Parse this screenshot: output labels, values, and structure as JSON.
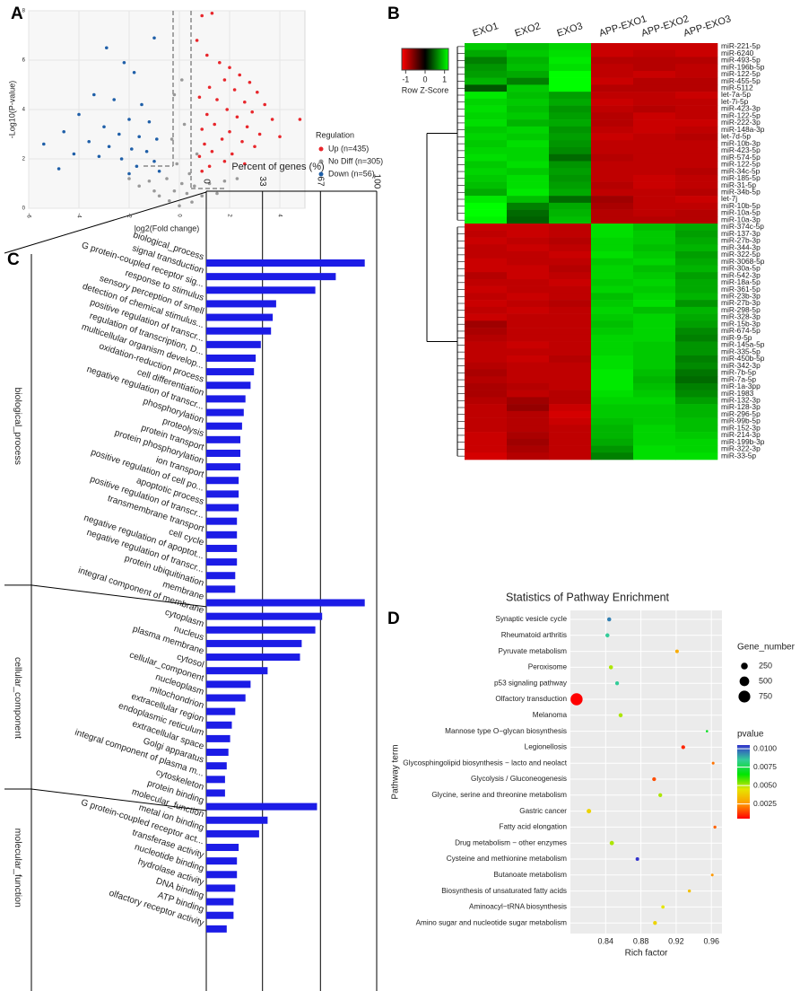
{
  "chart_data": [
    {
      "panel": "A",
      "type": "scatter",
      "x_label": "log2(Fold change)",
      "y_label": "-Log10(P-value)",
      "xlim": [
        -6,
        5
      ],
      "ylim": [
        0,
        8
      ],
      "xticks": [
        -6,
        -4,
        -2,
        0,
        2,
        4
      ],
      "yticks": [
        0,
        2,
        4,
        6,
        8
      ],
      "legend_title": "Regulation",
      "series": [
        {
          "name": "Up (n=435)",
          "color": "#e8262b",
          "x": [
            0.9,
            1.3,
            0.7,
            1.1,
            1.6,
            2.0,
            2.4,
            1.8,
            2.8,
            1.2,
            2.2,
            3.1,
            0.8,
            1.5,
            2.6,
            3.4,
            1.9,
            2.9,
            1.1,
            2.3,
            3.7,
            1.4,
            2.7,
            0.9,
            2.0,
            3.2,
            4.0,
            1.7,
            2.5,
            1.0,
            3.0,
            1.3,
            2.1,
            0.8,
            1.8,
            2.6,
            1.2,
            0.9,
            4.8
          ],
          "values": [
            7.8,
            7.9,
            6.8,
            6.2,
            5.9,
            5.7,
            5.4,
            5.2,
            5.1,
            4.9,
            4.8,
            4.7,
            4.5,
            4.4,
            4.3,
            4.2,
            4.0,
            3.9,
            3.8,
            3.7,
            3.6,
            3.4,
            3.3,
            3.2,
            3.1,
            3.0,
            2.9,
            2.8,
            2.7,
            2.6,
            2.5,
            2.3,
            2.2,
            2.1,
            1.9,
            1.8,
            1.7,
            1.5,
            3.6
          ]
        },
        {
          "name": "No Diff (n=305)",
          "color": "#999999",
          "x": [
            -0.3,
            0.2,
            -0.1,
            0.4,
            -0.5,
            0.1,
            -1.2,
            -2.0,
            -1.6,
            0.6,
            1.2,
            1.8,
            -0.2,
            0.3,
            -0.8,
            0.9,
            -0.4,
            0.5,
            0.0,
            1.5,
            -1.0,
            2.3,
            0.7,
            -0.2,
            0.1
          ],
          "values": [
            2.8,
            3.4,
            1.8,
            1.4,
            1.2,
            1.0,
            1.1,
            1.2,
            0.9,
            0.9,
            1.0,
            1.1,
            0.7,
            0.6,
            0.5,
            0.5,
            0.3,
            0.25,
            0.1,
            0.6,
            0.7,
            1.2,
            2.2,
            4.6,
            5.2
          ]
        },
        {
          "name": "Down (n=56)",
          "color": "#1f5fa8",
          "x": [
            -2.9,
            -2.2,
            -1.8,
            -1.0,
            -3.4,
            -2.6,
            -1.5,
            -4.0,
            -2.0,
            -1.2,
            -3.0,
            -4.6,
            -2.4,
            -1.6,
            -0.9,
            -3.6,
            -2.8,
            -1.9,
            -1.3,
            -4.2,
            -3.2,
            -2.3,
            -1.0,
            -1.7,
            -4.8,
            -0.8,
            -5.4,
            -2.0
          ],
          "values": [
            6.5,
            5.9,
            5.5,
            6.9,
            4.6,
            4.4,
            4.2,
            3.8,
            3.6,
            3.5,
            3.3,
            3.1,
            3.0,
            2.9,
            2.8,
            2.7,
            2.5,
            2.4,
            2.3,
            2.2,
            2.1,
            2.0,
            1.9,
            1.7,
            1.6,
            1.5,
            2.6,
            1.4
          ]
        }
      ]
    },
    {
      "panel": "B",
      "type": "heatmap",
      "columns": [
        "EXO1",
        "EXO2",
        "EXO3",
        "APP-EXO1",
        "APP-EXO2",
        "APP-EXO3"
      ],
      "rows": [
        "miR-221-5p",
        "miR-6240",
        "miR-493-5p",
        "miR-196b-5p",
        "miR-122-5p",
        "miR-455-5p",
        "miR-5112",
        "let-7a-5p",
        "let-7i-5p",
        "miR-423-3p",
        "miR-122-5p",
        "miR-222-3p",
        "miR-148a-3p",
        "let-7d-5p",
        "miR-10b-3p",
        "miR-423-5p",
        "miR-574-5p",
        "miR-122-5p",
        "miR-34c-5p",
        "miR-185-5p",
        "miR-31-5p",
        "miR-34b-5p",
        "let-7j",
        "miR-10b-5p",
        "miR-10a-5p",
        "miR-10a-3p",
        "miR-374c-5p",
        "miR-137-3p",
        "miR-27b-3p",
        "miR-344-3p",
        "miR-322-5p",
        "miR-3068-5p",
        "miR-30a-5p",
        "miR-542-3p",
        "miR-18a-5p",
        "miR-361-5p",
        "miR-23b-3p",
        "miR-27b-3p",
        "miR-298-5p",
        "miR-328-3p",
        "miR-15b-3p",
        "miR-674-5p",
        "miR-9-5p",
        "miR-145a-5p",
        "miR-335-5p",
        "miR-450b-5p",
        "miR-342-3p",
        "miR-7b-5p",
        "miR-7a-5p",
        "miR-1a-3pp",
        "miR-1983",
        "miR-132-3p",
        "miR-128-3p",
        "miR-296-5p",
        "miR-99b-5p",
        "miR-152-3p",
        "miR-214-3p",
        "miR-199b-3p",
        "miR-322-3p",
        "miR-33-5p"
      ],
      "values": [
        [
          0.95,
          0.9,
          1.0,
          -0.95,
          -0.95,
          -0.95
        ],
        [
          0.8,
          0.95,
          1.05,
          -0.95,
          -0.9,
          -0.95
        ],
        [
          0.6,
          0.85,
          1.1,
          -0.85,
          -0.85,
          -0.85
        ],
        [
          0.7,
          0.9,
          1.05,
          -0.9,
          -0.85,
          -0.9
        ],
        [
          0.75,
          0.8,
          1.2,
          -0.9,
          -0.95,
          -0.9
        ],
        [
          0.85,
          0.6,
          1.2,
          -0.95,
          -0.85,
          -0.85
        ],
        [
          0.4,
          0.95,
          1.2,
          -0.85,
          -0.85,
          -0.85
        ],
        [
          1.1,
          0.9,
          0.75,
          -0.9,
          -0.9,
          -0.95
        ],
        [
          1.0,
          0.95,
          0.8,
          -0.95,
          -0.9,
          -0.9
        ],
        [
          1.05,
          0.9,
          0.7,
          -0.9,
          -0.85,
          -0.9
        ],
        [
          1.0,
          0.95,
          0.75,
          -0.85,
          -0.95,
          -0.9
        ],
        [
          1.05,
          0.85,
          0.8,
          -0.85,
          -0.95,
          -0.95
        ],
        [
          0.95,
          1.0,
          0.7,
          -0.9,
          -0.95,
          -0.9
        ],
        [
          1.0,
          0.95,
          0.75,
          -0.95,
          -0.9,
          -0.85
        ],
        [
          0.95,
          1.05,
          0.7,
          -0.9,
          -0.9,
          -0.9
        ],
        [
          1.0,
          1.0,
          0.65,
          -0.9,
          -0.9,
          -0.9
        ],
        [
          1.05,
          1.0,
          0.5,
          -0.85,
          -0.9,
          -0.9
        ],
        [
          0.95,
          1.05,
          0.7,
          -0.9,
          -0.9,
          -0.9
        ],
        [
          1.0,
          0.95,
          0.75,
          -0.9,
          -0.9,
          -0.85
        ],
        [
          0.95,
          1.05,
          0.7,
          -0.9,
          -0.95,
          -0.9
        ],
        [
          0.9,
          1.05,
          0.75,
          -0.85,
          -0.95,
          -0.9
        ],
        [
          0.8,
          1.1,
          0.8,
          -0.9,
          -0.9,
          -0.85
        ],
        [
          1.1,
          0.9,
          0.5,
          -0.75,
          -0.9,
          -0.95
        ],
        [
          1.2,
          0.6,
          0.8,
          -0.8,
          -0.9,
          -0.9
        ],
        [
          1.2,
          0.5,
          0.85,
          -0.85,
          -0.9,
          -0.85
        ],
        [
          1.15,
          0.45,
          0.9,
          -0.85,
          -0.85,
          -0.85
        ],
        [
          -0.95,
          -0.95,
          -0.9,
          1.05,
          0.9,
          0.8
        ],
        [
          -0.9,
          -0.95,
          -0.9,
          1.05,
          0.95,
          0.75
        ],
        [
          -0.95,
          -0.9,
          -0.85,
          1.0,
          0.95,
          0.8
        ],
        [
          -0.9,
          -0.95,
          -0.9,
          1.0,
          0.9,
          0.85
        ],
        [
          -0.9,
          -0.9,
          -0.95,
          1.05,
          0.95,
          0.75
        ],
        [
          -0.95,
          -0.9,
          -0.9,
          0.95,
          1.0,
          0.8
        ],
        [
          -0.95,
          -0.95,
          -0.85,
          1.0,
          0.9,
          0.85
        ],
        [
          -0.85,
          -0.95,
          -0.9,
          1.0,
          0.95,
          0.75
        ],
        [
          -0.9,
          -0.9,
          -0.95,
          0.95,
          1.0,
          0.8
        ],
        [
          -0.95,
          -0.9,
          -0.9,
          1.0,
          0.95,
          0.8
        ],
        [
          -0.9,
          -0.95,
          -0.9,
          0.9,
          1.0,
          0.85
        ],
        [
          -0.95,
          -0.9,
          -0.85,
          0.95,
          1.05,
          0.7
        ],
        [
          -0.9,
          -0.95,
          -0.9,
          1.0,
          0.9,
          0.85
        ],
        [
          -0.95,
          -0.9,
          -0.9,
          0.95,
          1.0,
          0.8
        ],
        [
          -0.75,
          -0.9,
          -0.9,
          0.9,
          1.0,
          0.75
        ],
        [
          -0.8,
          -0.9,
          -0.9,
          0.95,
          1.0,
          0.65
        ],
        [
          -0.85,
          -0.9,
          -0.9,
          1.0,
          1.0,
          0.6
        ],
        [
          -0.9,
          -0.95,
          -0.9,
          1.0,
          0.95,
          0.7
        ],
        [
          -0.9,
          -0.9,
          -0.9,
          1.0,
          0.95,
          0.7
        ],
        [
          -0.9,
          -0.95,
          -0.85,
          1.05,
          0.95,
          0.6
        ],
        [
          -0.85,
          -0.9,
          -0.9,
          1.05,
          0.95,
          0.65
        ],
        [
          -0.8,
          -0.9,
          -0.9,
          1.1,
          0.9,
          0.55
        ],
        [
          -0.85,
          -0.9,
          -0.9,
          1.1,
          0.85,
          0.5
        ],
        [
          -0.8,
          -0.85,
          -0.9,
          1.1,
          0.9,
          0.6
        ],
        [
          -0.8,
          -0.9,
          -0.85,
          1.05,
          0.95,
          0.65
        ],
        [
          -0.85,
          -0.75,
          -0.85,
          1.0,
          1.0,
          0.75
        ],
        [
          -0.9,
          -0.7,
          -0.95,
          0.95,
          0.95,
          0.85
        ],
        [
          -0.9,
          -0.85,
          -1.0,
          0.95,
          0.95,
          0.85
        ],
        [
          -0.9,
          -0.85,
          -0.95,
          0.9,
          0.95,
          0.9
        ],
        [
          -0.9,
          -0.85,
          -0.9,
          0.85,
          1.0,
          0.9
        ],
        [
          -0.95,
          -0.8,
          -0.9,
          0.85,
          1.0,
          0.95
        ],
        [
          -0.95,
          -0.75,
          -0.9,
          0.8,
          1.0,
          1.0
        ],
        [
          -0.95,
          -0.8,
          -0.9,
          0.7,
          1.05,
          1.0
        ],
        [
          -1.0,
          -0.85,
          -0.9,
          0.6,
          1.05,
          1.05
        ]
      ],
      "zlim": [
        -1.2,
        1.2
      ],
      "colorbar_ticks": [
        -1,
        0,
        1
      ],
      "colorbar_label": "Row Z-Score",
      "colors": [
        "#ff0000",
        "#000000",
        "#00ff00"
      ]
    },
    {
      "panel": "C",
      "type": "barh",
      "title": "Percent of genes (%)",
      "xlim": [
        0,
        100
      ],
      "xticks": [
        0,
        33,
        67,
        100
      ],
      "color": "#1c1ce6",
      "groups": [
        {
          "name": "biological_process",
          "categories": [
            "biological_process",
            "signal transduction",
            "G protein-coupled receptor sig...",
            "response to stimulus",
            "sensory perception of smell",
            "detection of chemical stimulus...",
            "positive regulation of transcr...",
            "regulation of transcription, D...",
            "multicellular organism develop...",
            "oxidation-reduction process",
            "cell differentiation",
            "negative regulation of transcr...",
            "phosphorylation",
            "proteolysis",
            "protein transport",
            "protein phosphorylation",
            "ion transport",
            "positive regulation of cell po...",
            "apoptotic process",
            "positive regulation of transcr...",
            "transmembrane transport",
            "cell cycle",
            "negative regulation of apoptot...",
            "negative regulation of transcr...",
            "protein ubiquitination"
          ],
          "values": [
            93,
            76,
            64,
            41,
            39,
            38,
            32,
            29,
            28,
            26,
            23,
            22,
            21,
            20,
            20,
            20,
            19,
            19,
            19,
            18,
            18,
            18,
            18,
            17,
            17
          ]
        },
        {
          "name": "cellular_component",
          "categories": [
            "membrane",
            "integral component of membrane",
            "cytoplasm",
            "nucleus",
            "plasma membrane",
            "cytosol",
            "cellular_component",
            "nucleoplasm",
            "mitochondrion",
            "extracellular region",
            "endoplasmic reticulum",
            "extracellular space",
            "Golgi apparatus",
            "integral component of plasma m...",
            "cytoskeleton"
          ],
          "values": [
            93,
            68,
            64,
            56,
            55,
            36,
            26,
            23,
            17,
            15,
            14,
            13,
            12,
            11,
            11
          ]
        },
        {
          "name": "molecular_function",
          "categories": [
            "protein binding",
            "molecular_function",
            "metal ion binding",
            "G protein-coupled receptor act...",
            "transferase activity",
            "nucleotide binding",
            "hydrolase activity",
            "DNA binding",
            "ATP binding",
            "olfactory receptor activity"
          ],
          "values": [
            65,
            36,
            31,
            19,
            18,
            18,
            17,
            16,
            16,
            12
          ]
        }
      ]
    },
    {
      "panel": "D",
      "type": "bubble",
      "title": "Statistics of Pathway Enrichment",
      "x_label": "Rich factor",
      "y_label": "Pathway term",
      "xlim": [
        0.8,
        0.972
      ],
      "xticks": [
        0.84,
        0.88,
        0.92,
        0.96
      ],
      "categories": [
        "Synaptic vesicle cycle",
        "Rheumatoid arthritis",
        "Pyruvate metabolism",
        "Peroxisome",
        "p53 signaling pathway",
        "Olfactory transduction",
        "Melanoma",
        "Mannose type O−glycan biosynthesis",
        "Legionellosis",
        "Glycosphingolipid biosynthesis − lacto and neolact",
        "Glycolysis / Gluconeogenesis",
        "Glycine, serine and threonine metabolism",
        "Gastric cancer",
        "Fatty acid elongation",
        "Drug metabolism − other enzymes",
        "Cysteine and methionine metabolism",
        "Butanoate metabolism",
        "Biosynthesis of unsaturated fatty acids",
        "Aminoacyl−tRNA biosynthesis",
        "Amino sugar and nucleotide sugar metabolism"
      ],
      "values": [
        0.844,
        0.842,
        0.921,
        0.846,
        0.853,
        0.807,
        0.857,
        0.955,
        0.928,
        0.962,
        0.895,
        0.902,
        0.821,
        0.964,
        0.847,
        0.876,
        0.961,
        0.935,
        0.905,
        0.896
      ],
      "size": [
        90,
        90,
        70,
        90,
        80,
        790,
        90,
        30,
        80,
        40,
        80,
        80,
        110,
        50,
        100,
        70,
        40,
        50,
        60,
        80
      ],
      "pvalue": [
        0.0095,
        0.0085,
        0.003,
        0.005,
        0.0085,
        0.0005,
        0.005,
        0.007,
        0.001,
        0.002,
        0.0015,
        0.005,
        0.004,
        0.0018,
        0.005,
        0.0105,
        0.0025,
        0.0035,
        0.0045,
        0.004
      ],
      "size_legend_title": "Gene_number",
      "size_ticks": [
        250,
        500,
        750
      ],
      "color_legend_title": "pvalue",
      "clim": [
        0.0005,
        0.0105
      ],
      "cticks": [
        {
          "value": 0.01,
          "label": "0.0100"
        },
        0.0075,
        {
          "value": 0.005,
          "label": "0.0050"
        },
        0.0025
      ],
      "colors": [
        "#ff0000",
        "#ff9900",
        "#e6e600",
        "#00e600",
        "#33cc99",
        "#3333cc"
      ]
    }
  ]
}
